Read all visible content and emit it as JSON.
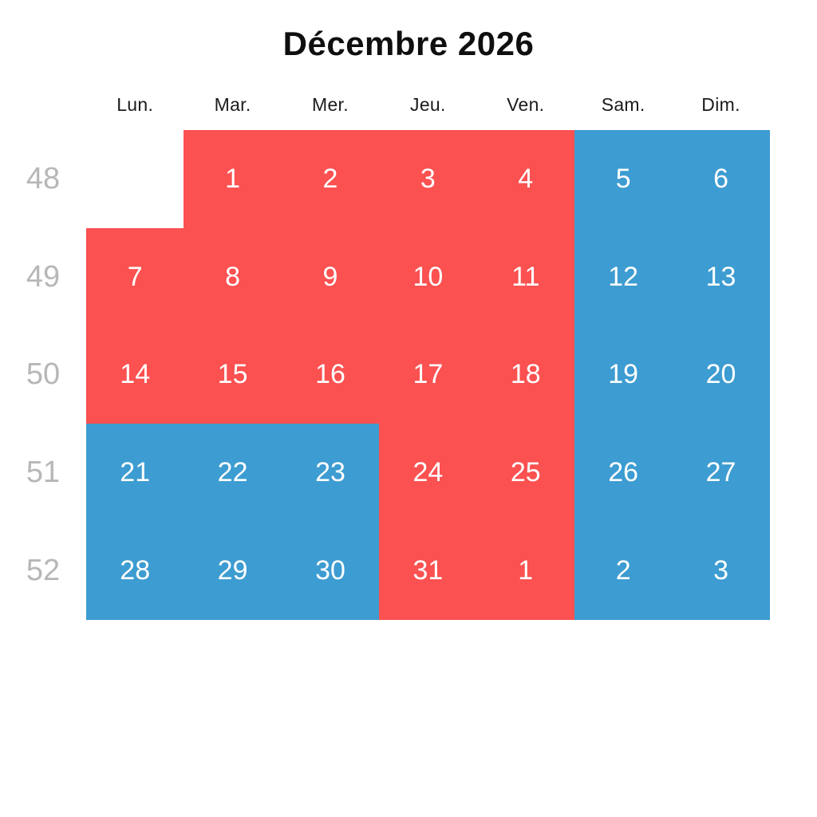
{
  "title": "Décembre 2026",
  "colors": {
    "red": "#FB5151",
    "blue": "#3D9CD1",
    "week_label": "#B7B7B7",
    "title_text": "#0F0F0F",
    "header_text": "#1B1B1B",
    "day_text": "#FFFFFF",
    "background": "#FFFFFF"
  },
  "calendar": {
    "day_headers": [
      "Lun.",
      "Mar.",
      "Mer.",
      "Jeu.",
      "Ven.",
      "Sam.",
      "Dim."
    ],
    "weeks": [
      {
        "week_number": "48",
        "days": [
          {
            "label": "",
            "color": "none"
          },
          {
            "label": "1",
            "color": "red"
          },
          {
            "label": "2",
            "color": "red"
          },
          {
            "label": "3",
            "color": "red"
          },
          {
            "label": "4",
            "color": "red"
          },
          {
            "label": "5",
            "color": "blue"
          },
          {
            "label": "6",
            "color": "blue"
          }
        ]
      },
      {
        "week_number": "49",
        "days": [
          {
            "label": "7",
            "color": "red"
          },
          {
            "label": "8",
            "color": "red"
          },
          {
            "label": "9",
            "color": "red"
          },
          {
            "label": "10",
            "color": "red"
          },
          {
            "label": "11",
            "color": "red"
          },
          {
            "label": "12",
            "color": "blue"
          },
          {
            "label": "13",
            "color": "blue"
          }
        ]
      },
      {
        "week_number": "50",
        "days": [
          {
            "label": "14",
            "color": "red"
          },
          {
            "label": "15",
            "color": "red"
          },
          {
            "label": "16",
            "color": "red"
          },
          {
            "label": "17",
            "color": "red"
          },
          {
            "label": "18",
            "color": "red"
          },
          {
            "label": "19",
            "color": "blue"
          },
          {
            "label": "20",
            "color": "blue"
          }
        ]
      },
      {
        "week_number": "51",
        "days": [
          {
            "label": "21",
            "color": "blue"
          },
          {
            "label": "22",
            "color": "blue"
          },
          {
            "label": "23",
            "color": "blue"
          },
          {
            "label": "24",
            "color": "red"
          },
          {
            "label": "25",
            "color": "red"
          },
          {
            "label": "26",
            "color": "blue"
          },
          {
            "label": "27",
            "color": "blue"
          }
        ]
      },
      {
        "week_number": "52",
        "days": [
          {
            "label": "28",
            "color": "blue"
          },
          {
            "label": "29",
            "color": "blue"
          },
          {
            "label": "30",
            "color": "blue"
          },
          {
            "label": "31",
            "color": "red"
          },
          {
            "label": "1",
            "color": "red"
          },
          {
            "label": "2",
            "color": "blue"
          },
          {
            "label": "3",
            "color": "blue"
          }
        ]
      }
    ]
  }
}
